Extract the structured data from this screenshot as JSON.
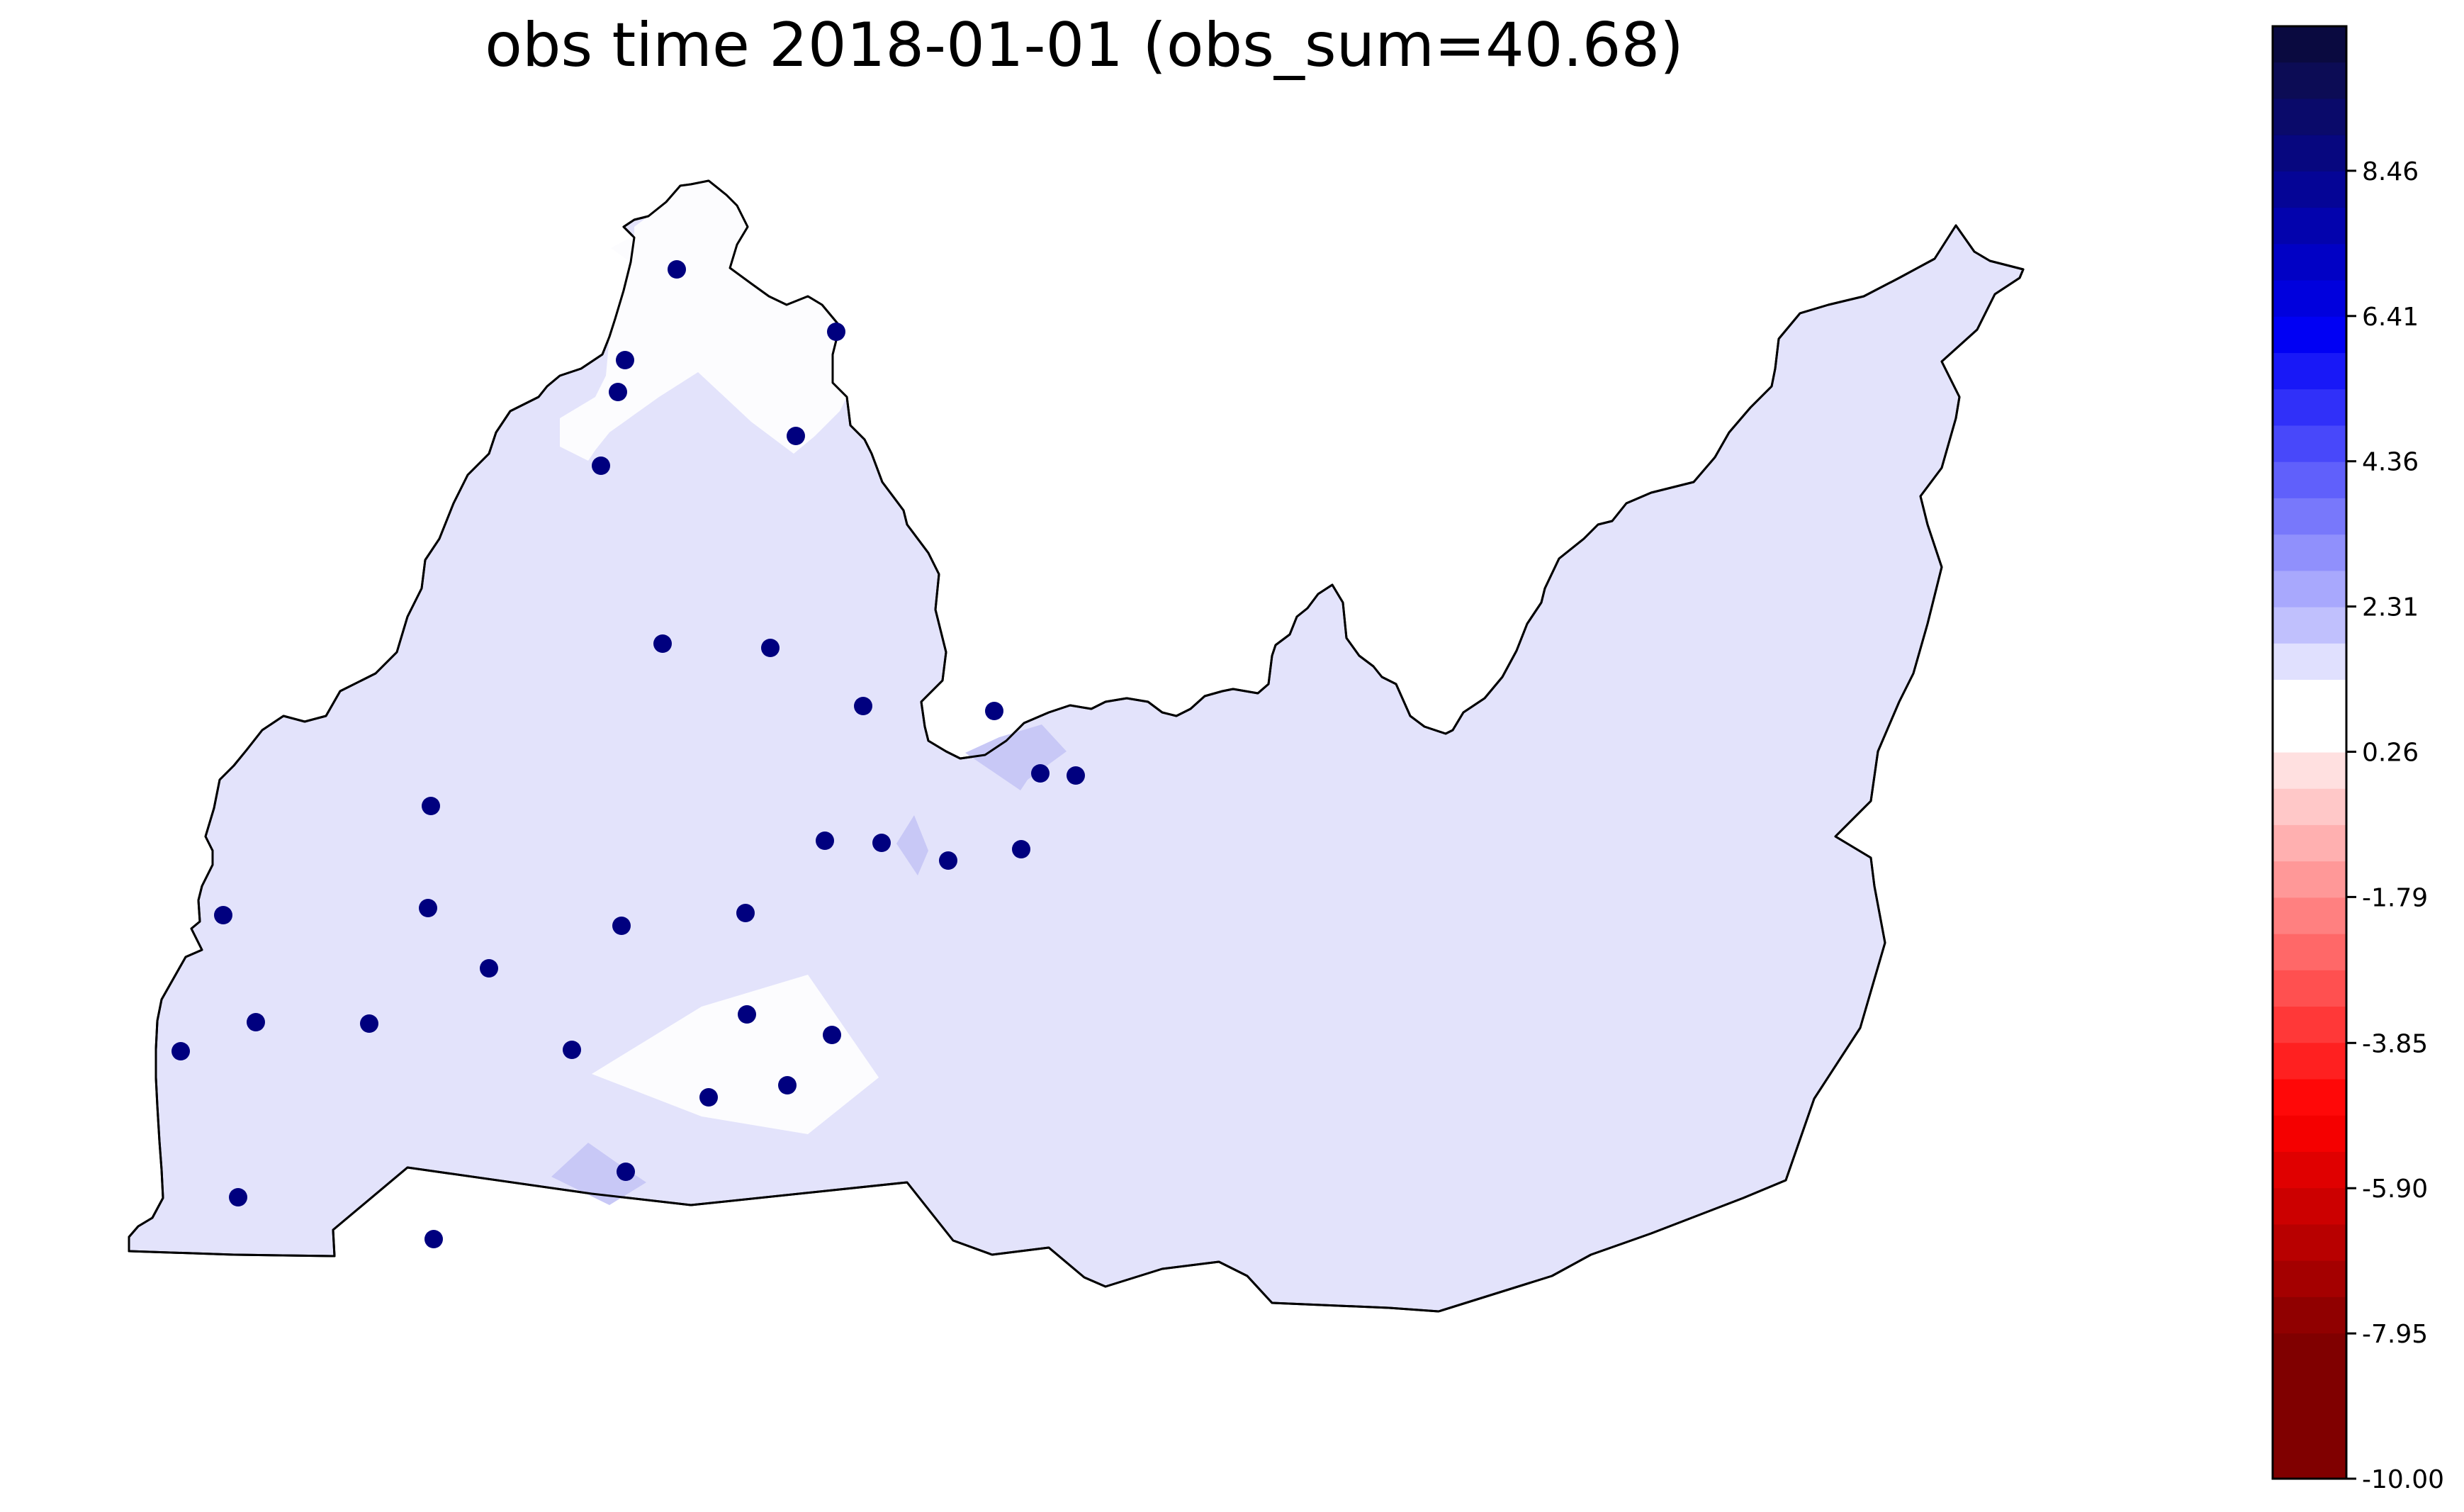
{
  "title": "obs time 2018-01-01 (obs_sum=40.68)",
  "colorbar": {
    "min": -10.0,
    "max": 10.5,
    "levels": 40,
    "tick_labels": [
      "8.46",
      "6.41",
      "4.36",
      "2.31",
      "0.26",
      "-1.79",
      "-3.85",
      "-5.90",
      "-7.95",
      "-10.00"
    ],
    "tick_values": [
      8.46,
      6.41,
      4.36,
      2.31,
      0.26,
      -1.79,
      -3.85,
      -5.9,
      -7.95,
      -10.0
    ],
    "colors": [
      "#0a0a40",
      "#0c0c55",
      "#0a0a6a",
      "#07077f",
      "#050596",
      "#0303ad",
      "#0101c5",
      "#0000dd",
      "#0000f4",
      "#1818f7",
      "#3030f9",
      "#4848fa",
      "#6060fb",
      "#7878fb",
      "#9090fc",
      "#a8a8fd",
      "#c0c0fd",
      "#e0e0fe",
      "#ffffff",
      "#ffffff",
      "#ffe0e0",
      "#ffc8c8",
      "#ffb0b0",
      "#ff9898",
      "#ff8080",
      "#ff6868",
      "#ff5050",
      "#ff3838",
      "#ff2020",
      "#ff0808",
      "#f50000",
      "#e00000",
      "#cc0000",
      "#b80000",
      "#a40000",
      "#900000",
      "#800000",
      "#800000",
      "#800000",
      "#800000"
    ]
  },
  "colors": {
    "region_fill": "#e3e3fb",
    "region_stroke": "#000000",
    "white_patch": "#fcfcfe",
    "blue_patch": "#c8c8f6",
    "station_dot": "#00007f"
  },
  "stations_count": 33
}
